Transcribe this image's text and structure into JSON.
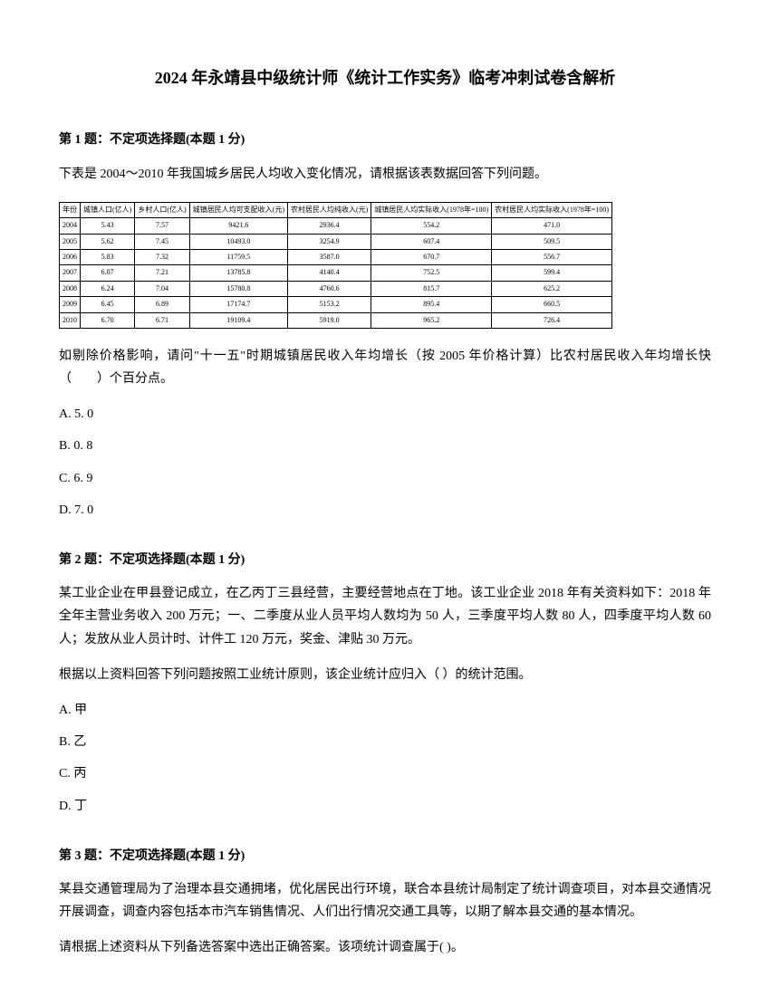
{
  "title": "2024 年永靖县中级统计师《统计工作实务》临考冲刺试卷含解析",
  "q1": {
    "header": "第 1 题：不定项选择题(本题 1 分)",
    "text1": "下表是 2004～2010 年我国城乡居民人均收入变化情况，请根据该表数据回答下列问题。",
    "table": {
      "headers": [
        "年份",
        "城镇人口(亿人)",
        "乡村人口(亿人)",
        "城镇居民人均可支配收入(元)",
        "农村居民人均纯收入(元)",
        "城镇居民人均实际收入(1978年=100)",
        "农村居民人均实际收入(1978年=100)"
      ],
      "rows": [
        [
          "2004",
          "5.43",
          "7.57",
          "9421.6",
          "2936.4",
          "554.2",
          "471.0"
        ],
        [
          "2005",
          "5.62",
          "7.45",
          "10493.0",
          "3254.9",
          "607.4",
          "509.5"
        ],
        [
          "2006",
          "5.83",
          "7.32",
          "11759.5",
          "3587.0",
          "670.7",
          "556.7"
        ],
        [
          "2007",
          "6.07",
          "7.21",
          "13785.8",
          "4140.4",
          "752.5",
          "599.4"
        ],
        [
          "2008",
          "6.24",
          "7.04",
          "15780.8",
          "4760.6",
          "815.7",
          "625.2"
        ],
        [
          "2009",
          "6.45",
          "6.89",
          "17174.7",
          "5153.2",
          "895.4",
          "660.5"
        ],
        [
          "2010",
          "6.70",
          "6.71",
          "19109.4",
          "5919.0",
          "965.2",
          "726.4"
        ]
      ]
    },
    "text2": "如剔除价格影响，请问\"十一五\"时期城镇居民收入年均增长（按 2005 年价格计算）比农村居民收入年均增长快（　　）个百分点。",
    "options": [
      "A. 5. 0",
      "B. 0. 8",
      "C. 6. 9",
      "D. 7. 0"
    ]
  },
  "q2": {
    "header": "第 2 题：不定项选择题(本题 1 分)",
    "text1": "某工业企业在甲县登记成立，在乙丙丁三县经营，主要经营地点在丁地。该工业企业 2018 年有关资料如下：2018 年全年主营业务收入 200 万元；一、二季度从业人员平均人数均为 50 人，三季度平均人数 80 人，四季度平均人数 60 人；发放从业人员计时、计件工 120 万元，奖金、津贴 30 万元。",
    "text2": "  根据以上资料回答下列问题按照工业统计原则，该企业统计应归入（  ）的统计范围。",
    "options": [
      "A. 甲",
      "B. 乙",
      "C. 丙",
      "D. 丁"
    ]
  },
  "q3": {
    "header": "第 3 题：不定项选择题(本题 1 分)",
    "text1": "某县交通管理局为了治理本县交通拥堵，优化居民出行环境，联合本县统计局制定了统计调查项目，对本县交通情况开展调查，调查内容包括本市汽车销售情况、人们出行情况交通工具等，以期了解本县交通的基本情况。",
    "text2": "请根据上述资料从下列备选答案中选出正确答案。该项统计调查属于( )。"
  }
}
